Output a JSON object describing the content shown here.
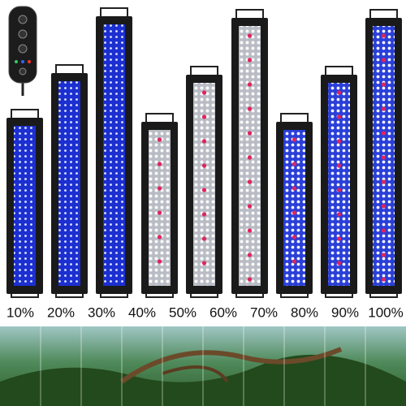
{
  "labels": [
    "10%",
    "20%",
    "30%",
    "40%",
    "50%",
    "60%",
    "70%",
    "80%",
    "90%",
    "100%"
  ]
}
